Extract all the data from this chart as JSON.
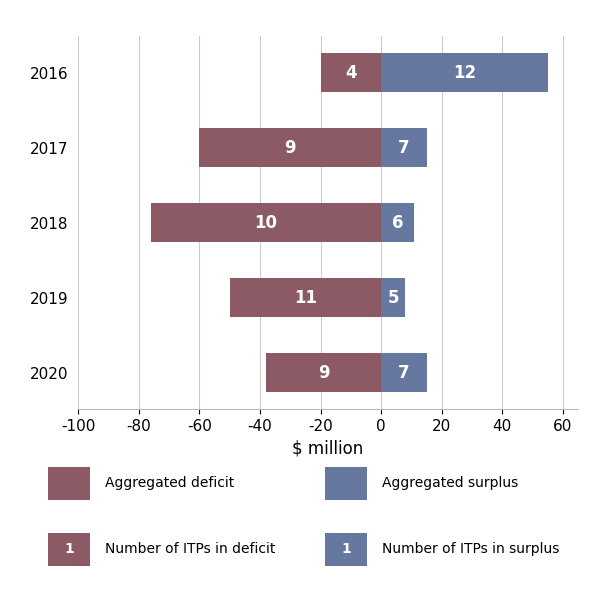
{
  "years": [
    "2016",
    "2017",
    "2018",
    "2019",
    "2020"
  ],
  "deficit_values": [
    -20,
    -60,
    -76,
    -50,
    -38
  ],
  "surplus_values": [
    55,
    15,
    11,
    8,
    15
  ],
  "deficit_counts": [
    4,
    9,
    10,
    11,
    9
  ],
  "surplus_counts": [
    12,
    7,
    6,
    5,
    7
  ],
  "deficit_color": "#8B5A65",
  "surplus_color": "#6677A0",
  "xlabel": "$ million",
  "xlim": [
    -100,
    65
  ],
  "xticks": [
    -100,
    -80,
    -60,
    -40,
    -20,
    0,
    20,
    40,
    60
  ],
  "background_color": "#ffffff",
  "grid_color": "#cccccc",
  "legend_deficit_label": "Aggregated deficit",
  "legend_surplus_label": "Aggregated surplus",
  "legend_deficit_count_label": "Number of ITPs in deficit",
  "legend_surplus_count_label": "Number of ITPs in surplus",
  "bar_height": 0.52,
  "label_fontsize": 12,
  "tick_fontsize": 11,
  "xlabel_fontsize": 12
}
